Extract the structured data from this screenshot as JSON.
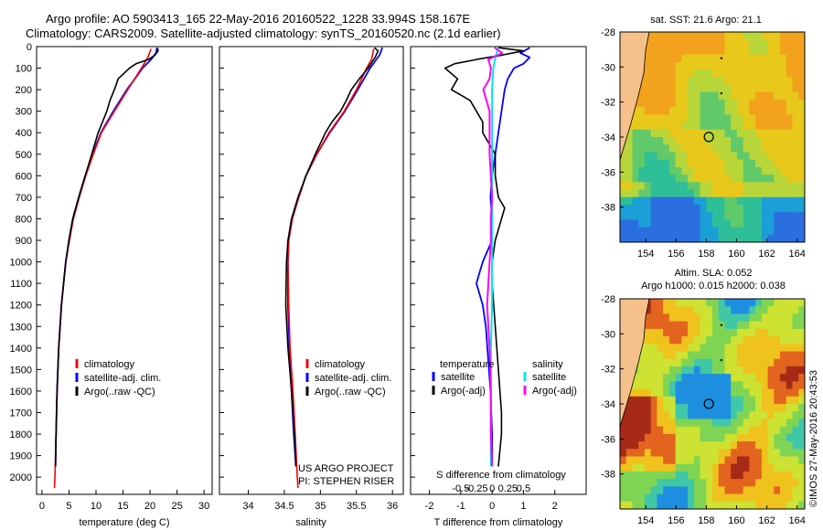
{
  "header": {
    "line1": "Argo profile: AO 5903413_165 22-May-2016 20160522_1228 33.994S 158.167E",
    "line2": "Climatology: CARS2009. Satellite-adjusted climatology: synTS_20160520.nc (2.1d earlier)"
  },
  "colors": {
    "climatology": "#ff0000",
    "satellite": "#0000ff",
    "argo": "#000000",
    "satellite_s": "#00e5ee",
    "argo_s": "#ff00ff"
  },
  "chart_data": [
    {
      "type": "line",
      "name": "temperature",
      "xlabel": "temperature (deg C)",
      "xlim": [
        -1,
        31.5
      ],
      "ylim": [
        0,
        2080
      ],
      "xticks": [
        "0",
        "5",
        "10",
        "15",
        "20",
        "25",
        "30"
      ],
      "yticks": [
        "0",
        "100",
        "200",
        "300",
        "400",
        "500",
        "600",
        "700",
        "800",
        "900",
        "1000",
        "1100",
        "1200",
        "1300",
        "1400",
        "1500",
        "1600",
        "1700",
        "1800",
        "1900",
        "2000"
      ],
      "legend": [
        "climatology",
        "satellite-adj. clim.",
        "Argo(..raw -QC)"
      ],
      "series": [
        {
          "name": "climatology",
          "depth": [
            10,
            50,
            100,
            200,
            300,
            400,
            500,
            600,
            700,
            800,
            900,
            1000,
            1200,
            1400,
            1600,
            1800,
            2000,
            2050
          ],
          "values": [
            20.2,
            19.6,
            18.4,
            15.9,
            13.4,
            11.0,
            9.5,
            8.1,
            6.9,
            5.8,
            5.1,
            4.4,
            3.6,
            3.1,
            2.8,
            2.6,
            2.4,
            2.3
          ]
        },
        {
          "name": "satellite-adj. clim.",
          "depth": [
            5,
            30,
            60,
            100,
            150,
            200,
            300,
            400,
            500,
            600,
            700,
            800,
            900,
            1000,
            1200,
            1400,
            1600,
            1800,
            1950
          ],
          "values": [
            21.3,
            21.1,
            20.2,
            18.6,
            17.2,
            15.7,
            13.2,
            10.9,
            9.4,
            8.0,
            6.8,
            5.7,
            5.0,
            4.4,
            3.6,
            3.1,
            2.8,
            2.6,
            2.5
          ]
        },
        {
          "name": "Argo(..raw -QC)",
          "depth": [
            5,
            20,
            40,
            60,
            80,
            100,
            150,
            200,
            250,
            300,
            350,
            400,
            450,
            500,
            600,
            700,
            800,
            900,
            1000,
            1200,
            1400,
            1600,
            1800,
            1950
          ],
          "values": [
            21.4,
            21.5,
            20.9,
            19.7,
            17.4,
            16.2,
            14.1,
            13.4,
            12.6,
            12.0,
            11.2,
            10.4,
            9.8,
            9.2,
            8.0,
            6.8,
            5.7,
            5.0,
            4.4,
            3.6,
            3.1,
            2.8,
            2.6,
            2.5
          ]
        }
      ]
    },
    {
      "type": "line",
      "name": "salinity",
      "xlabel": "salinity",
      "xlim": [
        33.6,
        36.15
      ],
      "ylim": [
        0,
        2080
      ],
      "xticks": [
        "34",
        "34.5",
        "35",
        "35.5",
        "36"
      ],
      "legend": [
        "climatology",
        "satellite-adj. clim.",
        "Argo(..raw -QC)"
      ],
      "annotation": [
        "US ARGO PROJECT",
        "PI: STEPHEN RISER"
      ],
      "series": [
        {
          "name": "climatology",
          "depth": [
            10,
            60,
            100,
            200,
            300,
            400,
            500,
            600,
            700,
            800,
            900,
            1000,
            1200,
            1400,
            1600,
            1800,
            2000,
            2050
          ],
          "values": [
            35.74,
            35.71,
            35.64,
            35.5,
            35.33,
            35.12,
            34.95,
            34.8,
            34.7,
            34.61,
            34.56,
            34.55,
            34.56,
            34.58,
            34.62,
            34.65,
            34.68,
            34.69
          ]
        },
        {
          "name": "satellite-adj. clim.",
          "depth": [
            5,
            40,
            100,
            200,
            300,
            400,
            500,
            600,
            700,
            800,
            900,
            1000,
            1200,
            1400,
            1600,
            1800,
            1950
          ],
          "values": [
            35.86,
            35.82,
            35.69,
            35.52,
            35.34,
            35.13,
            34.95,
            34.8,
            34.7,
            34.61,
            34.56,
            34.55,
            34.55,
            34.57,
            34.6,
            34.63,
            34.66
          ]
        },
        {
          "name": "Argo(..raw -QC)",
          "depth": [
            5,
            20,
            50,
            100,
            150,
            200,
            250,
            300,
            350,
            400,
            450,
            500,
            600,
            700,
            800,
            900,
            1000,
            1200,
            1400,
            1600,
            1800,
            1950
          ],
          "values": [
            35.75,
            35.8,
            35.76,
            35.66,
            35.54,
            35.43,
            35.36,
            35.28,
            35.16,
            35.07,
            35.0,
            34.93,
            34.8,
            34.69,
            34.6,
            34.55,
            34.53,
            34.52,
            34.55,
            34.6,
            34.64,
            34.66
          ]
        }
      ]
    },
    {
      "type": "line",
      "name": "differences",
      "xlabel": "T difference from climatology",
      "xlabel2": "S difference from climatology",
      "xlim": [
        -2.6,
        3.0
      ],
      "ylim": [
        0,
        2080
      ],
      "xticks": [
        "-2",
        "-1",
        "0",
        "1",
        "2"
      ],
      "xticks2": [
        "-0.5",
        "-0.25",
        "0",
        "0.25",
        "0.5"
      ],
      "legend_t_title": "temperature",
      "legend_s_title": "salinity",
      "legend_t": [
        "satellite",
        "Argo(-adj)"
      ],
      "legend_s": [
        "satellite",
        "Argo(-adj)"
      ],
      "series": [
        {
          "name": "T satellite",
          "depth": [
            5,
            30,
            50,
            80,
            100,
            150,
            200,
            300,
            400,
            500,
            600,
            700,
            800,
            900,
            1000,
            1050,
            1100,
            1200,
            1300,
            1400,
            1500,
            1600,
            1800,
            1950
          ],
          "values": [
            1.2,
            0.9,
            1.2,
            1.0,
            0.7,
            0.5,
            0.4,
            0.3,
            0.2,
            0.1,
            0.0,
            -0.05,
            0.0,
            0.0,
            -0.3,
            -0.4,
            -0.5,
            -0.3,
            -0.2,
            -0.15,
            -0.1,
            -0.05,
            0.0,
            0.0
          ]
        },
        {
          "name": "T Argo(-adj)",
          "depth": [
            5,
            20,
            40,
            60,
            80,
            100,
            150,
            200,
            250,
            300,
            350,
            400,
            450,
            500,
            600,
            700,
            750,
            800,
            850,
            900,
            1000,
            1100,
            1200,
            1300,
            1400,
            1500,
            1600,
            1700,
            1800,
            1950
          ],
          "values": [
            0.2,
            1.0,
            0.3,
            -0.5,
            -1.2,
            -1.5,
            -1.1,
            -1.3,
            -0.7,
            -0.5,
            -0.3,
            -0.3,
            -0.1,
            0.1,
            0.1,
            0.2,
            0.4,
            0.3,
            0.2,
            0.1,
            0.0,
            0.0,
            0.05,
            0.1,
            0.15,
            0.2,
            0.25,
            0.3,
            0.3,
            0.2
          ]
        },
        {
          "name": "S satellite",
          "depth": [
            5,
            40,
            100,
            200,
            300,
            400,
            500,
            600,
            700,
            800,
            900,
            1000,
            1200,
            1400,
            1600,
            1800,
            1950
          ],
          "values": [
            0.05,
            0.03,
            0.01,
            0.0,
            0.0,
            0.0,
            0.0,
            0.0,
            0.0,
            0.0,
            0.0,
            0.0,
            0.0,
            -0.01,
            -0.01,
            -0.01,
            -0.01
          ]
        },
        {
          "name": "S Argo(-adj)",
          "depth": [
            5,
            30,
            60,
            100,
            150,
            200,
            300,
            400,
            500,
            600,
            700,
            800,
            900,
            1000,
            1200,
            1400,
            1600,
            1800,
            1950
          ],
          "values": [
            0.02,
            0.08,
            -0.03,
            -0.01,
            -0.02,
            -0.07,
            -0.02,
            -0.02,
            -0.02,
            -0.01,
            0.0,
            -0.01,
            -0.01,
            -0.02,
            -0.04,
            -0.02,
            -0.01,
            -0.01,
            0.0
          ]
        }
      ]
    },
    {
      "type": "heatmap",
      "name": "sst-map",
      "title": "sat. SST: 21.6  Argo: 21.1",
      "xticks": [
        "154",
        "156",
        "158",
        "160",
        "162",
        "164"
      ],
      "yticks": [
        "-28",
        "-30",
        "-32",
        "-34",
        "-36",
        "-38"
      ],
      "xlim": [
        152.3,
        164.5
      ],
      "ylim": [
        -40,
        -28
      ]
    },
    {
      "type": "heatmap",
      "name": "sla-map",
      "title_line1": "Altim. SLA: 0.052",
      "title_line2": "Argo h1000: 0.015 h2000: 0.038",
      "xticks": [
        "154",
        "156",
        "158",
        "160",
        "162",
        "164"
      ],
      "yticks": [
        "-28",
        "-30",
        "-32",
        "-34",
        "-36",
        "-38"
      ],
      "xlim": [
        152.3,
        164.5
      ],
      "ylim": [
        -40,
        -28
      ]
    }
  ],
  "credit": "©IMOS 27-May-2016 20:43:53"
}
